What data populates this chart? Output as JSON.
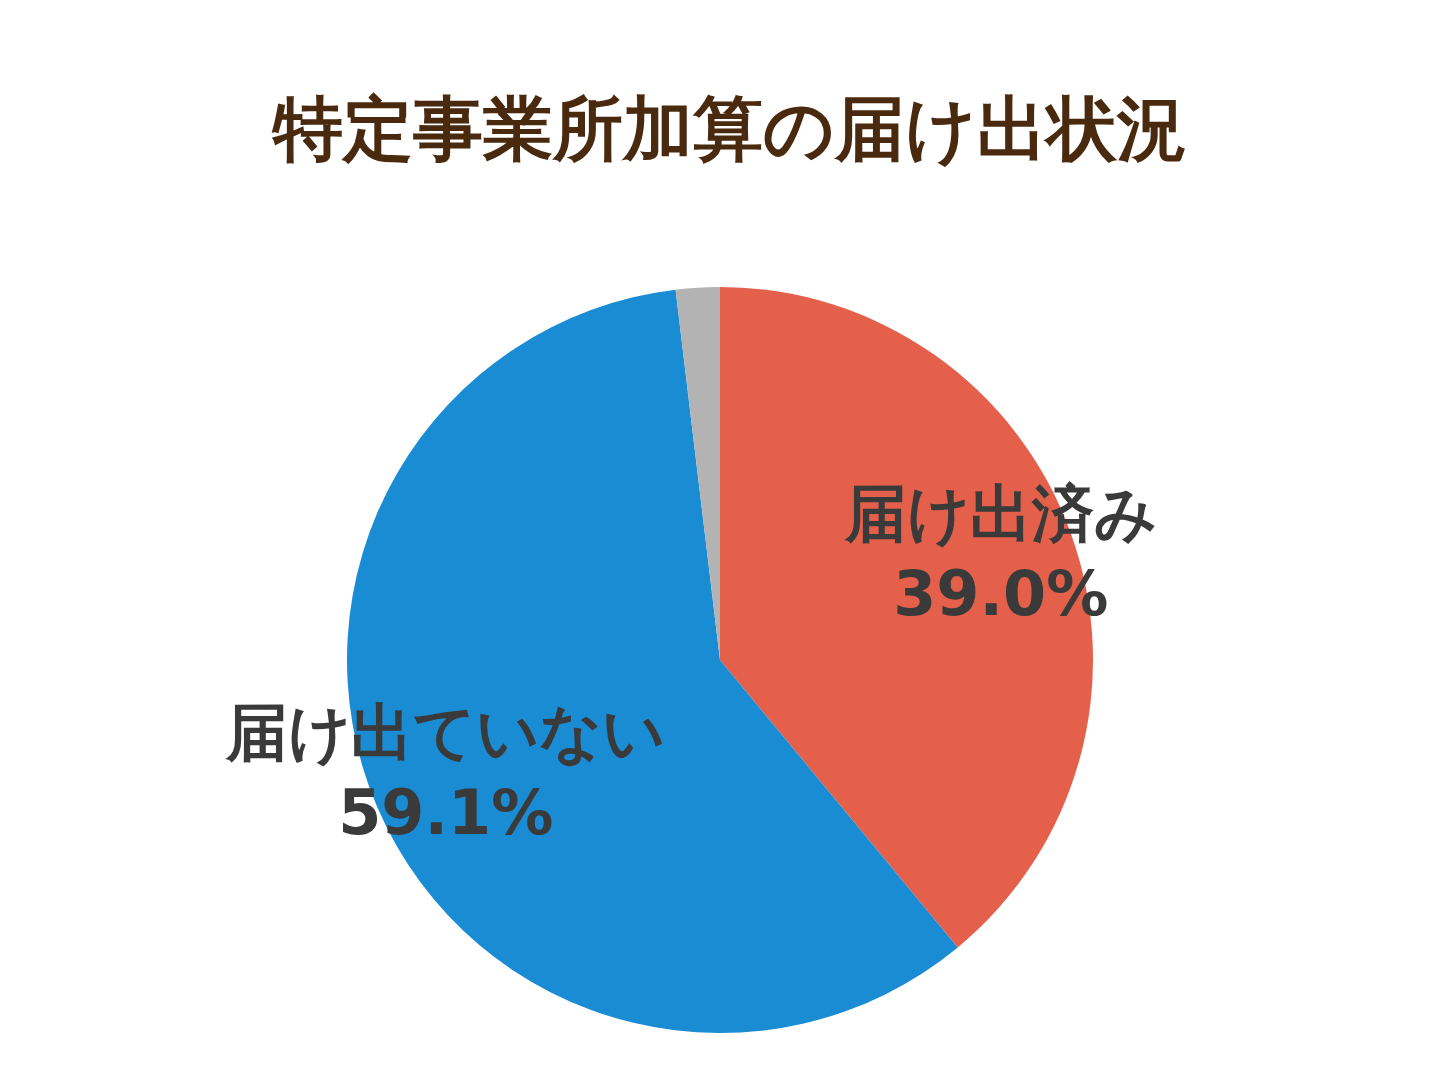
{
  "chart_data": {
    "type": "pie",
    "title": "特定事業所加算の届け出状況",
    "categories": [
      "届け出済み",
      "届け出ていない",
      null
    ],
    "values": [
      39.0,
      59.1,
      1.9
    ],
    "colors": [
      "#e5604a",
      "#1a8cd4",
      "#b3b3b3"
    ],
    "value_labels": [
      "39.0%",
      "59.1%",
      null
    ],
    "legend": false
  }
}
